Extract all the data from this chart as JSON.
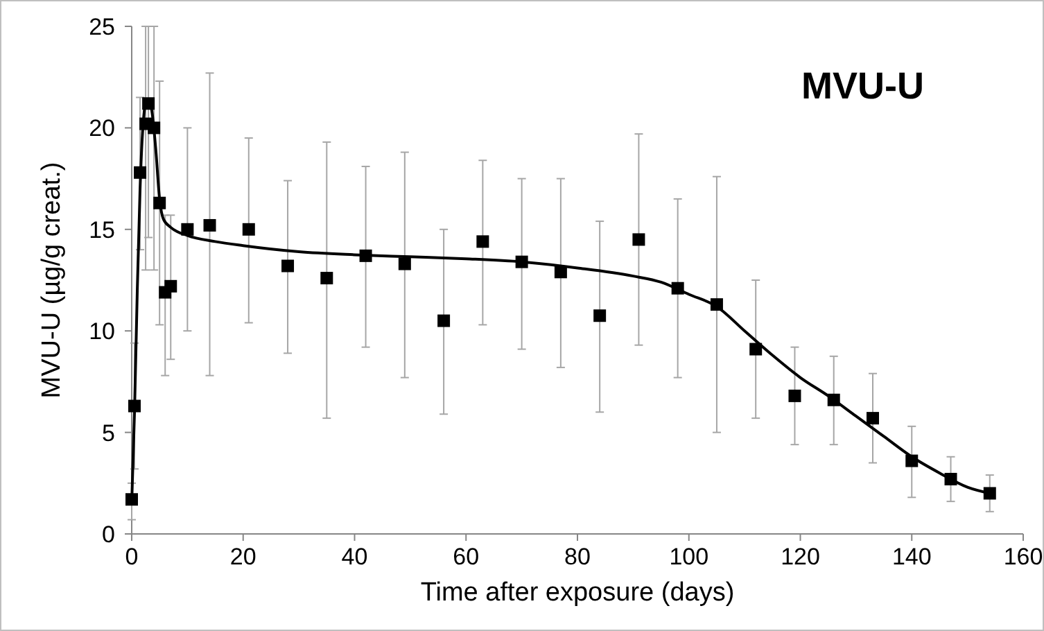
{
  "chart_data": {
    "type": "scatter",
    "title": "MVU-U",
    "xlabel": "Time after exposure  (days)",
    "ylabel": "MVU-U  (µg/g creat.)",
    "xlim": [
      0,
      160
    ],
    "xticks": [
      0,
      20,
      40,
      60,
      80,
      100,
      120,
      140,
      160
    ],
    "ylim": [
      0,
      25
    ],
    "yticks": [
      0,
      5,
      10,
      15,
      20,
      25
    ],
    "grid": false,
    "series": [
      {
        "color": "#000000",
        "marker": "square",
        "x": [
          0,
          0.5,
          1.5,
          2.5,
          3,
          4,
          5,
          6,
          7,
          10,
          14,
          21,
          28,
          35,
          42,
          49,
          56,
          63,
          70,
          77,
          84,
          91,
          98,
          105,
          112,
          119,
          126,
          133,
          140,
          147,
          154
        ],
        "values": [
          1.7,
          6.3,
          17.8,
          20.2,
          21.2,
          20.0,
          16.3,
          11.9,
          12.2,
          15.0,
          15.2,
          15.0,
          13.2,
          12.6,
          13.7,
          13.3,
          10.5,
          14.4,
          13.4,
          12.9,
          10.75,
          14.5,
          12.1,
          11.3,
          9.1,
          6.8,
          6.6,
          5.7,
          3.6,
          2.7,
          2.0
        ],
        "errors": [
          [
            0.7,
            2.5
          ],
          [
            3.2,
            9.4
          ],
          [
            14.0,
            21.5
          ],
          [
            13.0,
            25
          ],
          [
            14.6,
            25
          ],
          [
            13.0,
            25
          ],
          [
            10.3,
            22.3
          ],
          [
            7.8,
            15.7
          ],
          [
            8.6,
            15.7
          ],
          [
            10.0,
            20.0
          ],
          [
            7.8,
            22.7
          ],
          [
            10.4,
            19.5
          ],
          [
            8.9,
            17.4
          ],
          [
            5.7,
            19.3
          ],
          [
            9.2,
            18.1
          ],
          [
            7.7,
            18.8
          ],
          [
            5.9,
            15.0
          ],
          [
            10.3,
            18.4
          ],
          [
            9.1,
            17.5
          ],
          [
            8.2,
            17.5
          ],
          [
            6.0,
            15.4
          ],
          [
            9.3,
            19.7
          ],
          [
            7.7,
            16.5
          ],
          [
            5.0,
            17.6
          ],
          [
            5.7,
            12.5
          ],
          [
            4.4,
            9.2
          ],
          [
            4.4,
            8.75
          ],
          [
            3.5,
            7.9
          ],
          [
            1.8,
            5.3
          ],
          [
            1.6,
            3.8
          ],
          [
            1.1,
            2.9
          ]
        ]
      },
      {
        "type": "line",
        "color": "#000000",
        "marker": "none",
        "line_style": "solid",
        "x": [
          0,
          0.5,
          1,
          1.5,
          2,
          2.7,
          3.5,
          4.3,
          5,
          5.7,
          7,
          10,
          15,
          20,
          30,
          40,
          50,
          60,
          70,
          80,
          90,
          95,
          100,
          105,
          110,
          115,
          120,
          125,
          130,
          135,
          140,
          145,
          150,
          154
        ],
        "values": [
          1.5,
          6,
          12,
          17,
          20,
          21.4,
          21,
          19,
          16.5,
          15.5,
          15.1,
          14.7,
          14.4,
          14.2,
          13.9,
          13.75,
          13.65,
          13.55,
          13.4,
          13.1,
          12.7,
          12.4,
          11.8,
          11.2,
          10.0,
          8.8,
          7.7,
          6.8,
          5.8,
          4.8,
          3.8,
          3.0,
          2.3,
          2.0
        ]
      }
    ]
  }
}
